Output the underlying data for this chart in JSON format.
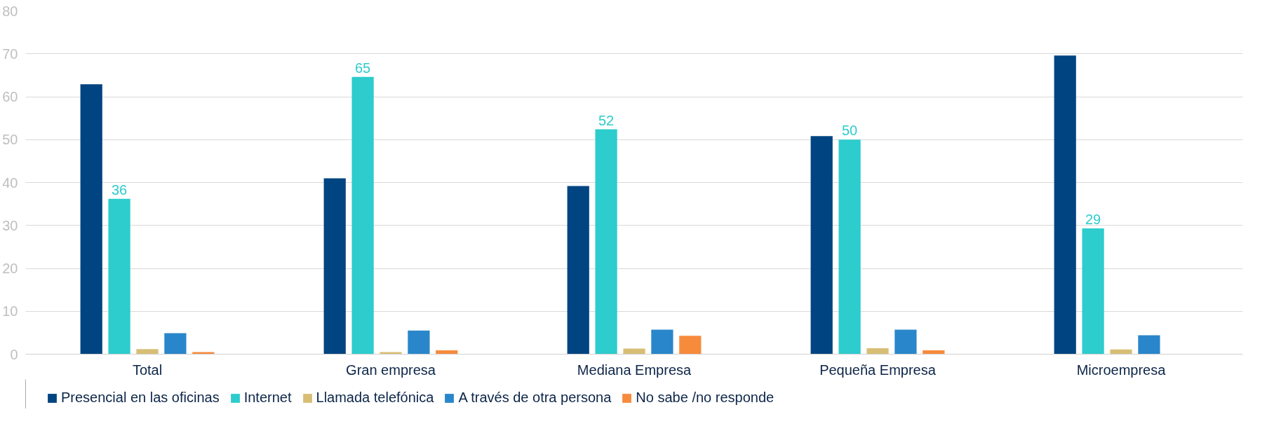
{
  "chart_data": {
    "type": "bar",
    "categories": [
      "Total",
      "Gran empresa",
      "Mediana Empresa",
      "Pequeña Empresa",
      "Microempresa"
    ],
    "series": [
      {
        "name": "Presencial en las oficinas",
        "color": "#004481",
        "values": [
          62.9,
          41.0,
          39.2,
          50.8,
          69.6
        ]
      },
      {
        "name": "Internet",
        "color": "#2dcccd",
        "values": [
          36.2,
          64.6,
          52.4,
          50.0,
          29.3
        ],
        "value_labels": [
          "36",
          "65",
          "52",
          "50",
          "29"
        ]
      },
      {
        "name": "Llamada telefónica",
        "color": "#d8be75",
        "values": [
          1.2,
          0.5,
          1.3,
          1.4,
          1.1
        ]
      },
      {
        "name": "A través de otra persona",
        "color": "#2a86ca",
        "values": [
          4.9,
          5.5,
          5.7,
          5.7,
          4.4
        ]
      },
      {
        "name": "No sabe /no responde",
        "color": "#f78b3c",
        "values": [
          0.5,
          0.9,
          4.3,
          0.9,
          null
        ]
      }
    ],
    "ylim": [
      0,
      80
    ],
    "yticks": [
      0,
      10,
      20,
      30,
      40,
      50,
      60,
      70,
      80
    ],
    "grid": "y",
    "legend": "bottom"
  }
}
